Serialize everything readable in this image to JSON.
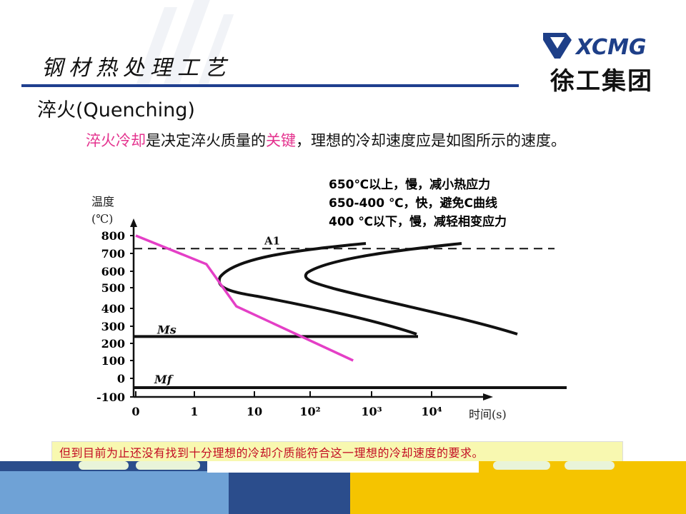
{
  "header": {
    "title": "钢材热处理工艺",
    "logo_top": "XCMG",
    "logo_bottom": "徐工集团"
  },
  "section_title": "淬火(Quenching)",
  "intro": {
    "part1": "淬火冷却",
    "part2": "是决定淬火质量的",
    "part3": "关键",
    "part4": "，理想的冷却速度应是如图所示的速度。"
  },
  "notes": [
    "650℃以上，慢，减小热应力",
    "650-400 ℃，快，避免C曲线",
    "400 ℃以下，慢，减轻相变应力"
  ],
  "chart_data": {
    "type": "line",
    "title": "",
    "ylabel_line1": "温度",
    "ylabel_line2": "(℃)",
    "xlabel": "时间(s)",
    "x_ticks": [
      "0",
      "1",
      "10",
      "10²",
      "10³",
      "10⁴"
    ],
    "y_ticks": [
      "800",
      "700",
      "600",
      "500",
      "400",
      "300",
      "200",
      "100",
      "0",
      "-100"
    ],
    "ylim": [
      -100,
      800
    ],
    "reference_lines": [
      {
        "name": "A1",
        "temp_c": 727
      },
      {
        "name": "Ms",
        "temp_c": 240
      },
      {
        "name": "Mf",
        "temp_c": -50
      }
    ],
    "series": [
      {
        "name": "ideal_cooling_curve",
        "color": "#e43fc6",
        "points": [
          [
            0,
            800
          ],
          [
            1.2,
            640
          ],
          [
            1.7,
            410
          ],
          [
            3.7,
            100
          ]
        ]
      }
    ],
    "c_curves": [
      "start",
      "finish"
    ]
  },
  "footer_note": "但到目前为止还没有找到十分理想的冷却介质能符合这一理想的冷却速度的要求。"
}
